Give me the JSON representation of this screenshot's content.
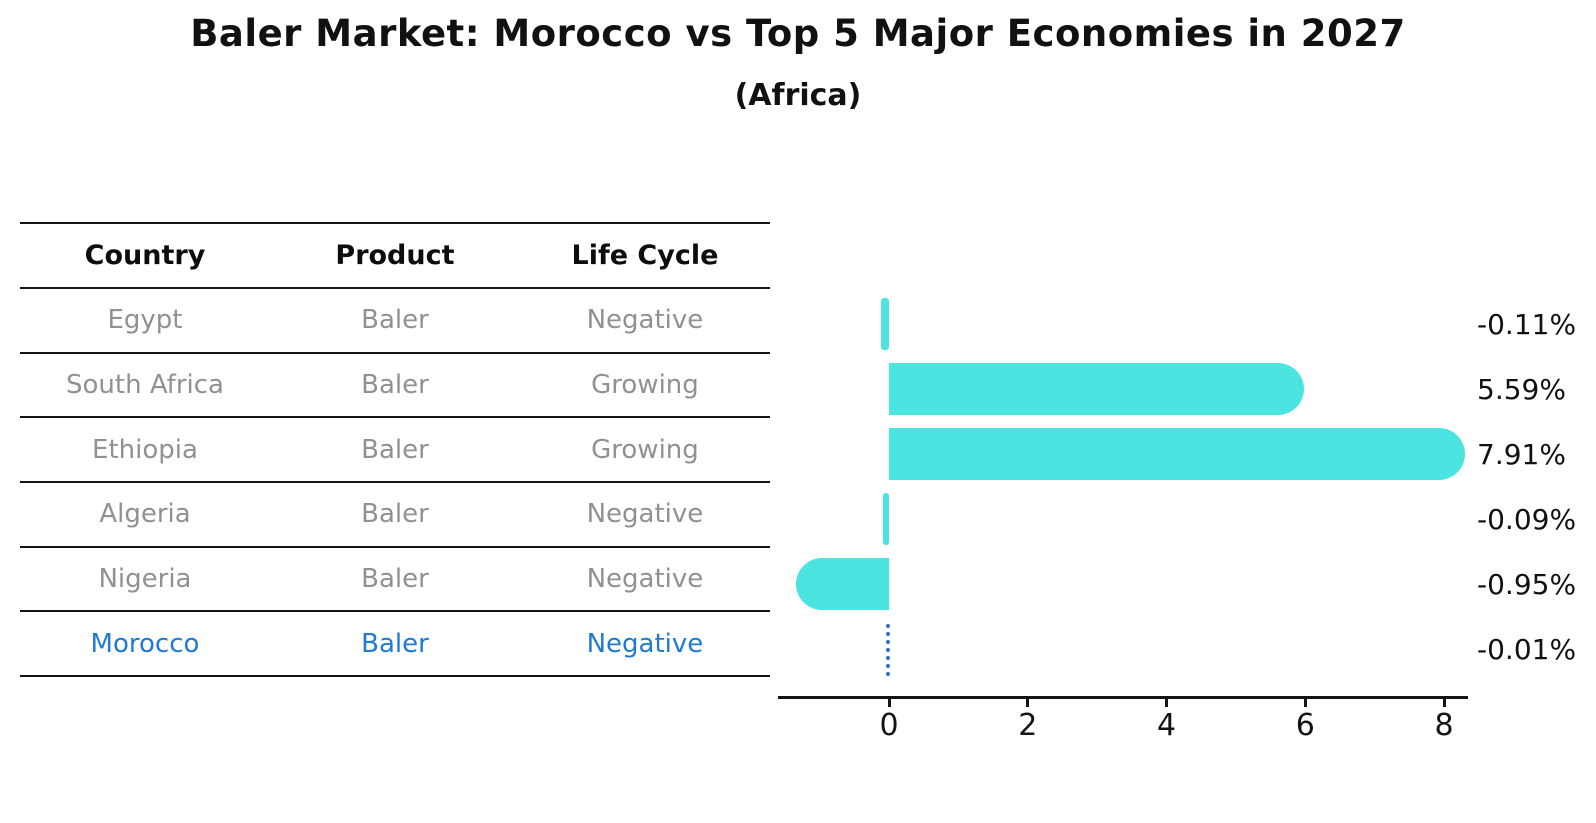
{
  "header": {
    "title": "Baler Market: Morocco vs Top 5 Major Economies in 2027",
    "subtitle": "(Africa)"
  },
  "table": {
    "columns": [
      "Country",
      "Product",
      "Life Cycle"
    ],
    "rows": [
      {
        "country": "Egypt",
        "product": "Baler",
        "life_cycle": "Negative",
        "highlight": false
      },
      {
        "country": "South Africa",
        "product": "Baler",
        "life_cycle": "Growing",
        "highlight": false
      },
      {
        "country": "Ethiopia",
        "product": "Baler",
        "life_cycle": "Growing",
        "highlight": false
      },
      {
        "country": "Algeria",
        "product": "Baler",
        "life_cycle": "Negative",
        "highlight": false
      },
      {
        "country": "Nigeria",
        "product": "Baler",
        "life_cycle": "Negative",
        "highlight": false
      },
      {
        "country": "Morocco",
        "product": "Baler",
        "life_cycle": "Negative",
        "highlight": true
      }
    ]
  },
  "chart_data": {
    "type": "bar",
    "orientation": "horizontal",
    "title": "Baler Market: Morocco vs Top 5 Major Economies in 2027",
    "subtitle": "(Africa)",
    "categories": [
      "Egypt",
      "South Africa",
      "Ethiopia",
      "Algeria",
      "Nigeria",
      "Morocco"
    ],
    "values": [
      -0.11,
      5.59,
      7.91,
      -0.09,
      -0.95,
      -0.01
    ],
    "value_labels": [
      "-0.11%",
      "5.59%",
      "7.91%",
      "-0.09%",
      "-0.95%",
      "-0.01%"
    ],
    "x_ticks": [
      0,
      2,
      4,
      6,
      8
    ],
    "xlim": [
      -1.6,
      8.35
    ],
    "grid": false,
    "legend": false,
    "bar_color": "#4BE4E0",
    "highlight_index": 5,
    "highlight_bar_style": "dotted-line",
    "highlight_color": "#2B72C4",
    "highlight_text_color": "#1F7AD4"
  }
}
